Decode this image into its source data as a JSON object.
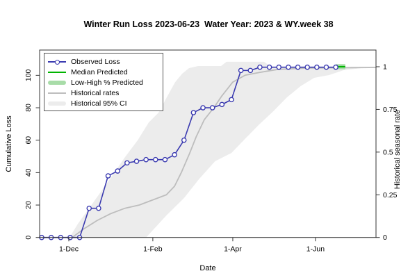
{
  "title": "Winter Run Loss 2023-06-23  Water Year: 2023 & WY.week 38",
  "chart_data": {
    "type": "line",
    "title": "Winter Run Loss 2023-06-23  Water Year: 2023 & WY.week 38",
    "xlabel": "Date",
    "ylabel_left": "Cumulative Loss",
    "ylabel_right": "Historical seasonal rate",
    "x_ticks": [
      {
        "label": "1-Dec",
        "day": 0
      },
      {
        "label": "1-Feb",
        "day": 62
      },
      {
        "label": "1-Apr",
        "day": 121
      },
      {
        "label": "1-Jun",
        "day": 182
      }
    ],
    "left_ticks": [
      {
        "label": "0",
        "value": 0
      },
      {
        "label": "20",
        "value": 20
      },
      {
        "label": "40",
        "value": 40
      },
      {
        "label": "60",
        "value": 60
      },
      {
        "label": "80",
        "value": 80
      },
      {
        "label": "100",
        "value": 100
      }
    ],
    "right_ticks": [
      {
        "label": "0",
        "value": 0
      },
      {
        "label": "0.25",
        "value": 0.25
      },
      {
        "label": "0.5",
        "value": 0.5
      },
      {
        "label": "0.75",
        "value": 0.75
      },
      {
        "label": "1",
        "value": 1
      }
    ],
    "ylim_left": [
      0,
      115
    ],
    "ylim_right": [
      0,
      1.1
    ],
    "xlim_days": [
      -22,
      229
    ],
    "grid": false,
    "legend_position": "top-left",
    "legend": [
      {
        "label": "Observed Loss",
        "type": "line-marker",
        "color": "#3a3ab0"
      },
      {
        "label": "Median Predicted",
        "type": "line",
        "color": "#00b400"
      },
      {
        "label": "Low-High % Predicted",
        "type": "band",
        "color": "#a8dca8"
      },
      {
        "label": "Historical rates",
        "type": "line",
        "color": "#bdbdbd"
      },
      {
        "label": "Historical 95% CI",
        "type": "band",
        "color": "#ececec"
      }
    ],
    "colors": {
      "observed": "#3a3ab0",
      "median_predicted": "#00b400",
      "low_high_band": "#a8dca8",
      "historical_rates": "#bdbdbd",
      "historical_ci": "#ececec",
      "axis": "#333333"
    },
    "observed_loss": {
      "note": "weekly cumulative loss; day = offset from 1-Dec",
      "days": [
        -20,
        -13,
        -6,
        1,
        8,
        15,
        22,
        29,
        36,
        43,
        50,
        57,
        64,
        71,
        78,
        85,
        92,
        99,
        106,
        113,
        120,
        127,
        134,
        141,
        148,
        155,
        162,
        169,
        176,
        183,
        190,
        197
      ],
      "dates": [
        "11-Nov",
        "18-Nov",
        "25-Nov",
        "2-Dec",
        "9-Dec",
        "16-Dec",
        "23-Dec",
        "30-Dec",
        "6-Jan",
        "13-Jan",
        "20-Jan",
        "27-Jan",
        "3-Feb",
        "10-Feb",
        "17-Feb",
        "24-Feb",
        "3-Mar",
        "10-Mar",
        "17-Mar",
        "24-Mar",
        "31-Mar",
        "7-Apr",
        "14-Apr",
        "21-Apr",
        "28-Apr",
        "5-May",
        "12-May",
        "19-May",
        "26-May",
        "2-Jun",
        "9-Jun",
        "16-Jun"
      ],
      "values": [
        0,
        0,
        0,
        0,
        0,
        18,
        18,
        38,
        41,
        46,
        47,
        48,
        48,
        48,
        51,
        60,
        77,
        80,
        80,
        82,
        85,
        103,
        103,
        105,
        105,
        105,
        105,
        105,
        105,
        105,
        105,
        105
      ]
    },
    "median_predicted": {
      "days": [
        197,
        204
      ],
      "rates": [
        1.0,
        1.0
      ]
    },
    "low_high_predicted": {
      "days": [
        197,
        204
      ],
      "rate_low": 0.985,
      "rate_high": 1.015
    },
    "historical_rates": {
      "points_day_rate": [
        [
          3,
          0.003
        ],
        [
          11,
          0.05
        ],
        [
          21,
          0.1
        ],
        [
          31,
          0.14
        ],
        [
          41,
          0.17
        ],
        [
          52,
          0.19
        ],
        [
          62,
          0.22
        ],
        [
          72,
          0.25
        ],
        [
          78,
          0.3
        ],
        [
          83,
          0.38
        ],
        [
          89,
          0.49
        ],
        [
          94,
          0.59
        ],
        [
          100,
          0.69
        ],
        [
          107,
          0.76
        ],
        [
          113,
          0.83
        ],
        [
          121,
          0.91
        ],
        [
          130,
          0.95
        ],
        [
          141,
          0.967
        ],
        [
          154,
          0.984
        ],
        [
          175,
          0.992
        ],
        [
          227,
          0.996
        ]
      ]
    },
    "historical_ci": {
      "upper_day_rate": [
        [
          0.5,
          0.0
        ],
        [
          6.7,
          0.08
        ],
        [
          14.9,
          0.17
        ],
        [
          23.6,
          0.267
        ],
        [
          32.3,
          0.365
        ],
        [
          41.5,
          0.471
        ],
        [
          50.8,
          0.569
        ],
        [
          59,
          0.674
        ],
        [
          66.2,
          0.731
        ],
        [
          72.3,
          0.821
        ],
        [
          78.5,
          0.91
        ],
        [
          83.6,
          0.959
        ],
        [
          88.7,
          0.992
        ],
        [
          95.4,
          1.004
        ],
        [
          112.3,
          1.004
        ],
        [
          116.4,
          1.029
        ],
        [
          144.1,
          1.029
        ],
        [
          149.2,
          1.0
        ],
        [
          226.2,
          1.0
        ]
      ],
      "lower_day_rate": [
        [
          57,
          0.0
        ],
        [
          72,
          0.129
        ],
        [
          85,
          0.231
        ],
        [
          96,
          0.341
        ],
        [
          108,
          0.447
        ],
        [
          120,
          0.495
        ],
        [
          130,
          0.577
        ],
        [
          140,
          0.658
        ],
        [
          151,
          0.74
        ],
        [
          161,
          0.821
        ],
        [
          171,
          0.886
        ],
        [
          181,
          0.935
        ],
        [
          192,
          0.951
        ],
        [
          203,
          0.98
        ],
        [
          216,
          0.992
        ],
        [
          226.2,
          0.992
        ]
      ]
    }
  }
}
